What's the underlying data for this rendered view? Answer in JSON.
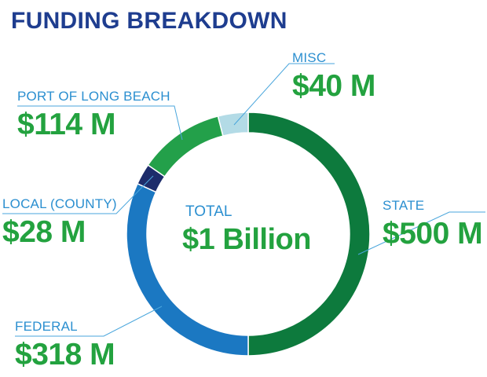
{
  "chart_data": {
    "type": "pie",
    "variant": "donut",
    "title": "FUNDING BREAKDOWN",
    "total_label": "TOTAL",
    "total_value": "$1 Billion",
    "categories": [
      "STATE",
      "FEDERAL",
      "LOCAL (COUNTY)",
      "PORT OF LONG BEACH",
      "MISC"
    ],
    "values": [
      500,
      318,
      28,
      114,
      40
    ],
    "value_labels": [
      "$500 M",
      "$318 M",
      "$28 M",
      "$114 M",
      "$40 M"
    ],
    "colors": [
      "#0d7a3d",
      "#1b78c2",
      "#1d2c6b",
      "#23a04a",
      "#b3dbe6"
    ],
    "label_color": "#2b8fd0",
    "value_color": "#23a23f",
    "title_color": "#1e3d8f"
  }
}
